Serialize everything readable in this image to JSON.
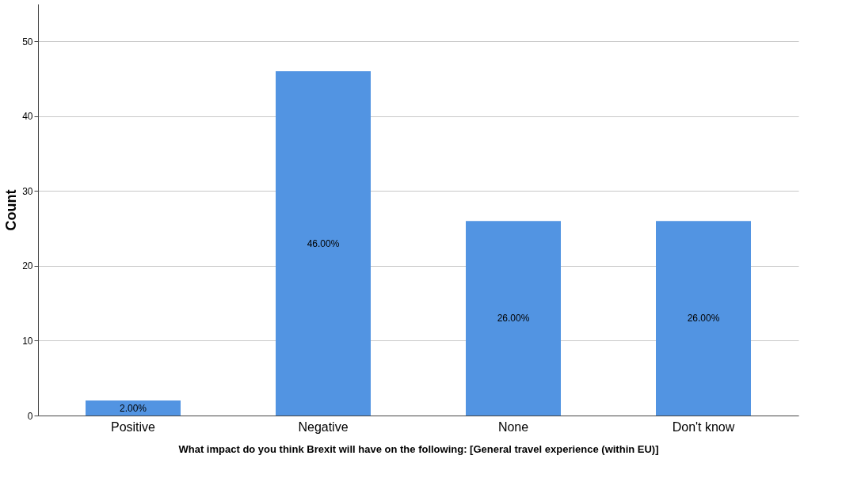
{
  "chart_data": {
    "type": "bar",
    "xlabel": "What impact do you think Brexit will have on the following: [General travel experience (within EU)]",
    "ylabel": "Count",
    "categories": [
      "Positive",
      "Negative",
      "None",
      "Don't know"
    ],
    "values": [
      2,
      46,
      26,
      26
    ],
    "color": "#5294e2",
    "value_labels": [
      "2.00%",
      "46.00%",
      "26.00%",
      "26.00%"
    ],
    "ylim": [
      0,
      55
    ],
    "yticks": [
      0,
      10,
      20,
      30,
      40,
      50
    ],
    "grid": "y"
  }
}
